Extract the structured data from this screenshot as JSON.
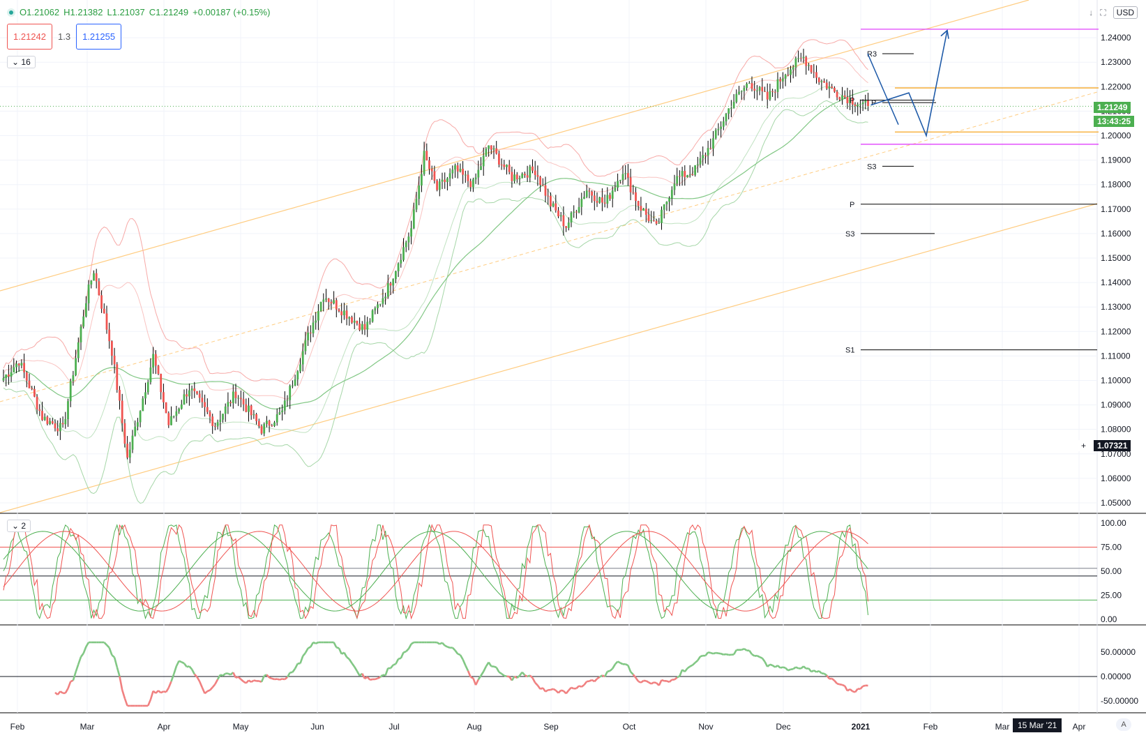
{
  "header": {
    "ohlc": {
      "open": "O1.21062",
      "high": "H1.21382",
      "low": "L1.21037",
      "close": "C1.21249",
      "change": "+0.00187 (+0.15%)"
    },
    "sell_price": "1.21242",
    "spread": "1.3",
    "buy_price": "1.21255",
    "currency": "USD"
  },
  "panes": {
    "main_indicator_count": "16",
    "osc_indicator_count": "2"
  },
  "price_tags": {
    "last_price": "1.21249",
    "countdown": "13:43:25",
    "crosshair_price": "1.07321"
  },
  "date_badge": "15 Mar '21",
  "auto_label": "A",
  "colors": {
    "up": "#4caf50",
    "down": "#ef5350",
    "wick": "#000000",
    "channel": "#ffcc80",
    "pivot_pink": "#e040fb",
    "bb_red": "#f7a9a7",
    "bb_green": "#a5d6a7",
    "arrow": "#1e5aa8"
  },
  "chart_data": {
    "type": "candlestick",
    "instrument_quote": "USD",
    "y_ticks": [
      "1.24000",
      "1.23000",
      "1.22000",
      "1.21000",
      "1.20000",
      "1.19000",
      "1.18000",
      "1.17000",
      "1.16000",
      "1.15000",
      "1.14000",
      "1.13000",
      "1.12000",
      "1.11000",
      "1.10000",
      "1.09000",
      "1.08000",
      "1.07000",
      "1.06000",
      "1.05000"
    ],
    "ylim": [
      1.046,
      1.254
    ],
    "x_ticks": [
      "Feb",
      "Mar",
      "Apr",
      "May",
      "Jun",
      "Jul",
      "Aug",
      "Sep",
      "Oct",
      "Nov",
      "Dec",
      "2021",
      "Feb",
      "Mar",
      "Apr"
    ],
    "close_path": [
      [
        0,
        1.101
      ],
      [
        6,
        1.108
      ],
      [
        15,
        1.085
      ],
      [
        23,
        1.08
      ],
      [
        32,
        1.133
      ],
      [
        35,
        1.145
      ],
      [
        42,
        1.112
      ],
      [
        48,
        1.068
      ],
      [
        55,
        1.097
      ],
      [
        58,
        1.11
      ],
      [
        64,
        1.082
      ],
      [
        72,
        1.097
      ],
      [
        82,
        1.082
      ],
      [
        90,
        1.095
      ],
      [
        100,
        1.08
      ],
      [
        108,
        1.087
      ],
      [
        118,
        1.118
      ],
      [
        124,
        1.135
      ],
      [
        132,
        1.128
      ],
      [
        140,
        1.121
      ],
      [
        149,
        1.138
      ],
      [
        158,
        1.162
      ],
      [
        163,
        1.192
      ],
      [
        168,
        1.178
      ],
      [
        175,
        1.186
      ],
      [
        182,
        1.18
      ],
      [
        188,
        1.196
      ],
      [
        197,
        1.183
      ],
      [
        206,
        1.186
      ],
      [
        212,
        1.172
      ],
      [
        218,
        1.163
      ],
      [
        226,
        1.178
      ],
      [
        233,
        1.172
      ],
      [
        240,
        1.186
      ],
      [
        246,
        1.172
      ],
      [
        253,
        1.162
      ],
      [
        260,
        1.182
      ],
      [
        268,
        1.186
      ],
      [
        275,
        1.198
      ],
      [
        282,
        1.213
      ],
      [
        289,
        1.222
      ],
      [
        296,
        1.215
      ],
      [
        303,
        1.226
      ],
      [
        310,
        1.232
      ],
      [
        316,
        1.223
      ],
      [
        322,
        1.218
      ],
      [
        330,
        1.214
      ],
      [
        335,
        1.212
      ]
    ],
    "osc_ticks": [
      "100.00",
      "75.00",
      "50.00",
      "25.00",
      "0.00"
    ],
    "osc_levels": [
      75,
      53,
      45,
      20
    ],
    "momentum_ticks": [
      "50.00000",
      "0.00000",
      "-50.00000"
    ],
    "annotations": {
      "horizontal_levels": [
        {
          "label": "R3",
          "value": 1.2335
        },
        {
          "label": "P",
          "value": 1.2145
        },
        {
          "label": "P",
          "value": 1.2135
        },
        {
          "label": "S3",
          "value": 1.1875
        },
        {
          "label": "P",
          "value": 1.172
        },
        {
          "label": "S3",
          "value": 1.16
        },
        {
          "label": "S1",
          "value": 1.1125
        }
      ],
      "pink_levels": [
        1.2435,
        1.1965
      ],
      "orange_levels": [
        1.2195,
        1.2015
      ],
      "forecast_path": [
        [
          1.2175,
          1.2
        ],
        [
          1.2,
          1.243
        ]
      ]
    }
  }
}
